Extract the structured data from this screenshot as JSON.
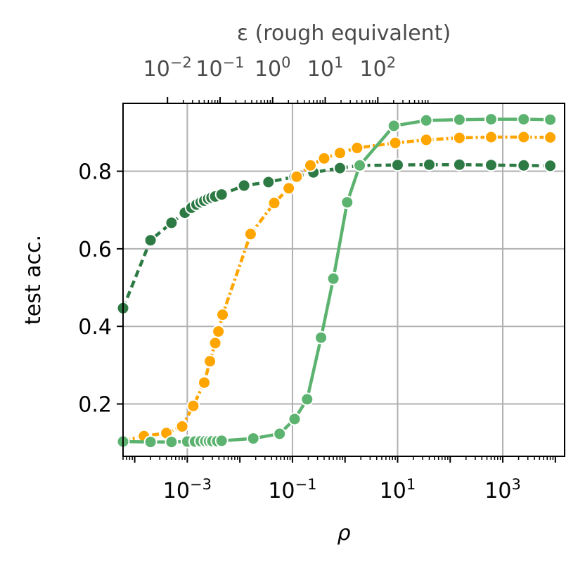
{
  "chart_data": {
    "type": "line",
    "xscale": "log",
    "x_axis": {
      "label": "ρ",
      "tick_values": [
        0.001,
        0.1,
        10,
        1000
      ],
      "tick_labels": [
        {
          "base": "10",
          "exp": "−3"
        },
        {
          "base": "10",
          "exp": "−1"
        },
        {
          "base": "10",
          "exp": "1"
        },
        {
          "base": "10",
          "exp": "3"
        }
      ],
      "xlim": [
        6e-05,
        15000
      ]
    },
    "y_axis": {
      "label": "test acc.",
      "tick_values": [
        0.2,
        0.4,
        0.6,
        0.8
      ],
      "tick_labels": [
        "0.2",
        "0.4",
        "0.6",
        "0.8"
      ],
      "ylim": [
        0.065,
        0.975
      ]
    },
    "top_axis": {
      "label": "ε (rough equivalent)",
      "scale": "log",
      "tick_labels": [
        {
          "base": "10",
          "exp": "−2",
          "value": 0.01
        },
        {
          "base": "10",
          "exp": "−1",
          "value": 0.1
        },
        {
          "base": "10",
          "exp": "0",
          "value": 1
        },
        {
          "base": "10",
          "exp": "1",
          "value": 10
        },
        {
          "base": "10",
          "exp": "2",
          "value": 100
        }
      ],
      "rho_at_tick": [
        0.00042,
        0.0042,
        0.042,
        0.42,
        4.2
      ]
    },
    "grid": true,
    "legend": "none",
    "series": [
      {
        "color": "#2d7a44",
        "dash": "10 6",
        "points": [
          [
            6e-05,
            0.447
          ],
          [
            0.0002,
            0.622
          ],
          [
            0.0005,
            0.667
          ],
          [
            0.0009,
            0.693
          ],
          [
            0.0012,
            0.706
          ],
          [
            0.0015,
            0.714
          ],
          [
            0.0018,
            0.72
          ],
          [
            0.0021,
            0.724
          ],
          [
            0.0025,
            0.729
          ],
          [
            0.0029,
            0.732
          ],
          [
            0.0034,
            0.735
          ],
          [
            0.0045,
            0.74
          ],
          [
            0.012,
            0.763
          ],
          [
            0.035,
            0.772
          ],
          [
            0.11,
            0.786
          ],
          [
            0.25,
            0.797
          ],
          [
            0.8,
            0.808
          ],
          [
            2.0,
            0.815
          ],
          [
            10.0,
            0.816
          ],
          [
            40.0,
            0.817
          ],
          [
            150.0,
            0.817
          ],
          [
            600.0,
            0.816
          ],
          [
            2500.0,
            0.815
          ],
          [
            8000.0,
            0.814
          ]
        ]
      },
      {
        "color": "#ffa500",
        "dash": "10 4 3 4",
        "points": [
          [
            6e-05,
            0.105
          ],
          [
            0.00015,
            0.117
          ],
          [
            0.0004,
            0.125
          ],
          [
            0.0008,
            0.142
          ],
          [
            0.0013,
            0.195
          ],
          [
            0.0021,
            0.255
          ],
          [
            0.0027,
            0.31
          ],
          [
            0.0034,
            0.357
          ],
          [
            0.0039,
            0.387
          ],
          [
            0.0047,
            0.43
          ],
          [
            0.016,
            0.638
          ],
          [
            0.045,
            0.718
          ],
          [
            0.085,
            0.756
          ],
          [
            0.12,
            0.786
          ],
          [
            0.22,
            0.815
          ],
          [
            0.4,
            0.833
          ],
          [
            0.8,
            0.847
          ],
          [
            1.7,
            0.86
          ],
          [
            9.0,
            0.873
          ],
          [
            35.0,
            0.881
          ],
          [
            150.0,
            0.886
          ],
          [
            600.0,
            0.888
          ],
          [
            2500.0,
            0.888
          ],
          [
            8000.0,
            0.887
          ]
        ]
      },
      {
        "color": "#5cb26f",
        "dash": "none",
        "points": [
          [
            6e-05,
            0.103
          ],
          [
            0.0002,
            0.102
          ],
          [
            0.0005,
            0.102
          ],
          [
            0.001,
            0.103
          ],
          [
            0.0014,
            0.103
          ],
          [
            0.0018,
            0.104
          ],
          [
            0.0022,
            0.104
          ],
          [
            0.0026,
            0.104
          ],
          [
            0.003,
            0.104
          ],
          [
            0.0037,
            0.104
          ],
          [
            0.0045,
            0.105
          ],
          [
            0.018,
            0.111
          ],
          [
            0.057,
            0.123
          ],
          [
            0.11,
            0.161
          ],
          [
            0.19,
            0.212
          ],
          [
            0.35,
            0.371
          ],
          [
            0.6,
            0.523
          ],
          [
            1.1,
            0.72
          ],
          [
            1.9,
            0.815
          ],
          [
            8.5,
            0.917
          ],
          [
            35.0,
            0.931
          ],
          [
            150.0,
            0.933
          ],
          [
            600.0,
            0.934
          ],
          [
            2500.0,
            0.934
          ],
          [
            8000.0,
            0.933
          ]
        ]
      }
    ]
  }
}
